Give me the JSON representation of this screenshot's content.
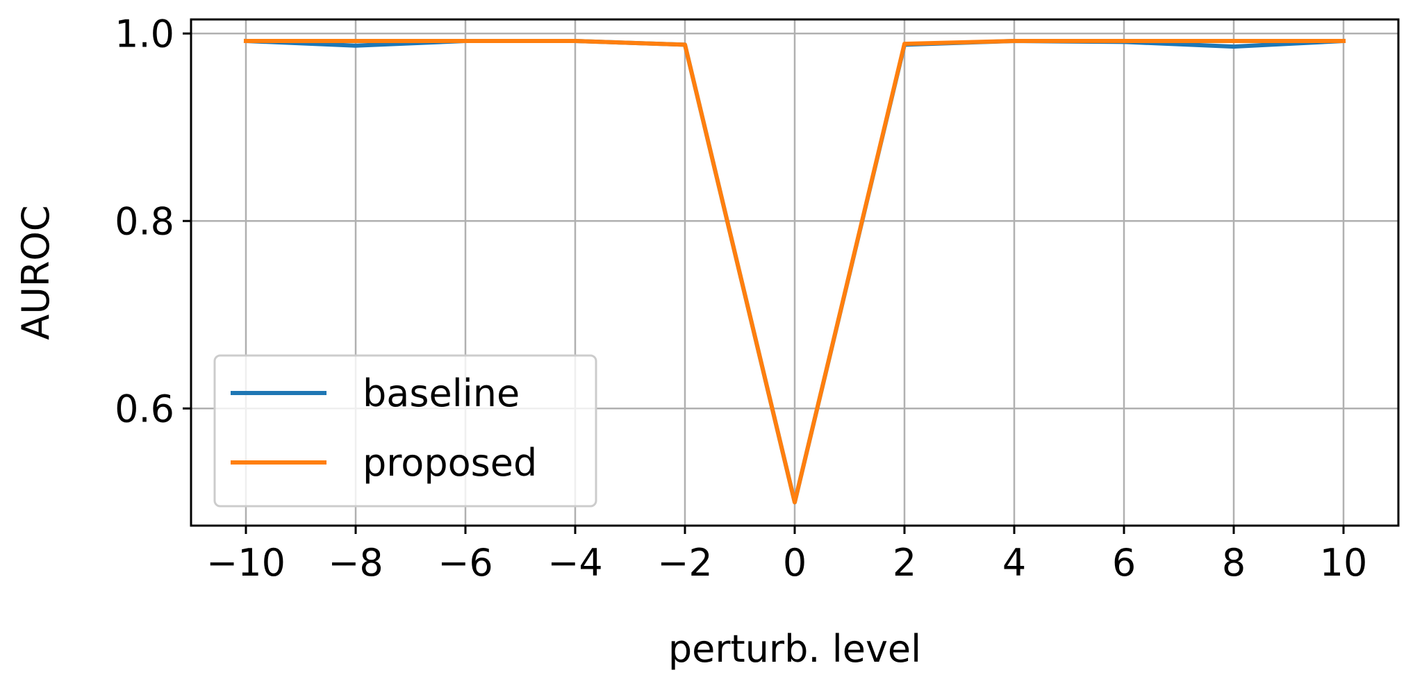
{
  "chart_data": {
    "type": "line",
    "title": "",
    "xlabel": "perturb. level",
    "ylabel": "AUROC",
    "x": [
      -10,
      -8,
      -6,
      -4,
      -2,
      0,
      2,
      4,
      6,
      8,
      10
    ],
    "xticks": [
      -10,
      -8,
      -6,
      -4,
      -2,
      0,
      2,
      4,
      6,
      8,
      10
    ],
    "xtick_labels": [
      "−10",
      "−8",
      "−6",
      "−4",
      "−2",
      "0",
      "2",
      "4",
      "6",
      "8",
      "10"
    ],
    "yticks": [
      0.6,
      0.8,
      1.0
    ],
    "ytick_labels": [
      "0.6",
      "0.8",
      "1.0"
    ],
    "xlim": [
      -11,
      11
    ],
    "ylim": [
      0.475,
      1.015
    ],
    "grid": true,
    "legend_position": "lower-left",
    "series": [
      {
        "name": "baseline",
        "color": "#1f77b4",
        "values": [
          0.992,
          0.987,
          0.992,
          0.992,
          0.988,
          0.5,
          0.988,
          0.992,
          0.991,
          0.986,
          0.992
        ]
      },
      {
        "name": "proposed",
        "color": "#ff7f0e",
        "values": [
          0.992,
          0.992,
          0.992,
          0.992,
          0.988,
          0.5,
          0.989,
          0.992,
          0.992,
          0.992,
          0.992
        ]
      }
    ]
  }
}
